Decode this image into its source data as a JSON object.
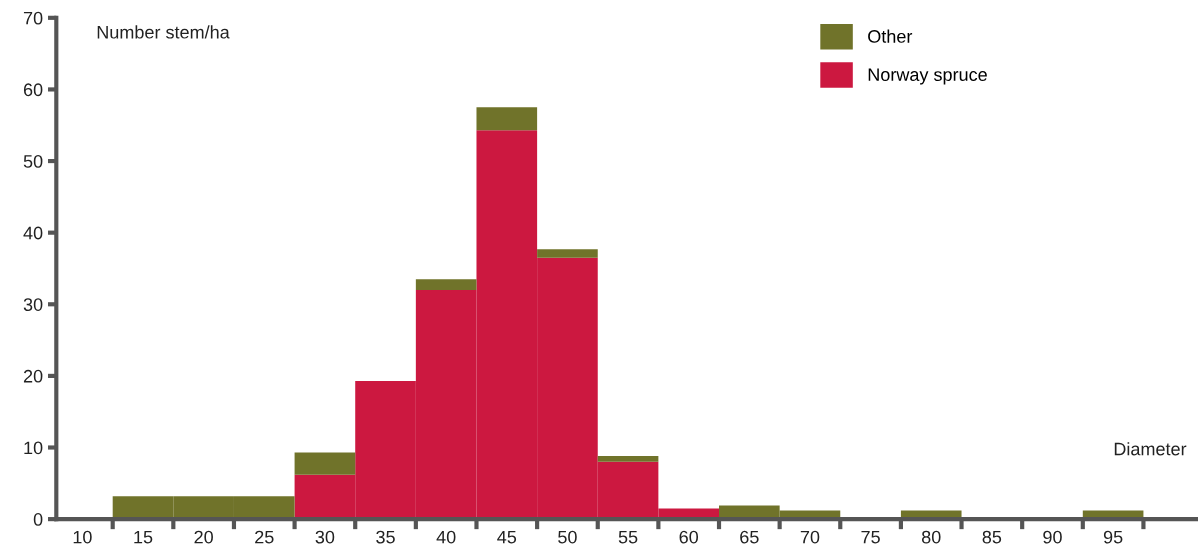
{
  "chart_data": {
    "type": "bar",
    "stacked": true,
    "ylabel": "Number stem/ha",
    "xlabel": "Diameter",
    "categories": [
      "10",
      "15",
      "20",
      "25",
      "30",
      "35",
      "40",
      "45",
      "50",
      "55",
      "60",
      "65",
      "70",
      "75",
      "80",
      "85",
      "90",
      "95"
    ],
    "series": [
      {
        "name": "Norway spruce",
        "color": "#cc1840",
        "values": [
          0,
          0,
          0,
          0,
          6.2,
          19.3,
          32,
          54.3,
          36.5,
          8,
          1.5,
          0,
          0,
          0,
          0,
          0,
          0,
          0
        ]
      },
      {
        "name": "Other",
        "color": "#70732a",
        "values": [
          0,
          3.2,
          3.2,
          3.2,
          3.1,
          0,
          1.5,
          3.2,
          1.2,
          0.8,
          0,
          1.9,
          1.2,
          0,
          1.2,
          0,
          0,
          1.2
        ]
      }
    ],
    "ylim": [
      0,
      70
    ],
    "yticks": [
      0,
      10,
      20,
      30,
      40,
      50,
      60,
      70
    ],
    "grid": false,
    "legend": "top right"
  }
}
